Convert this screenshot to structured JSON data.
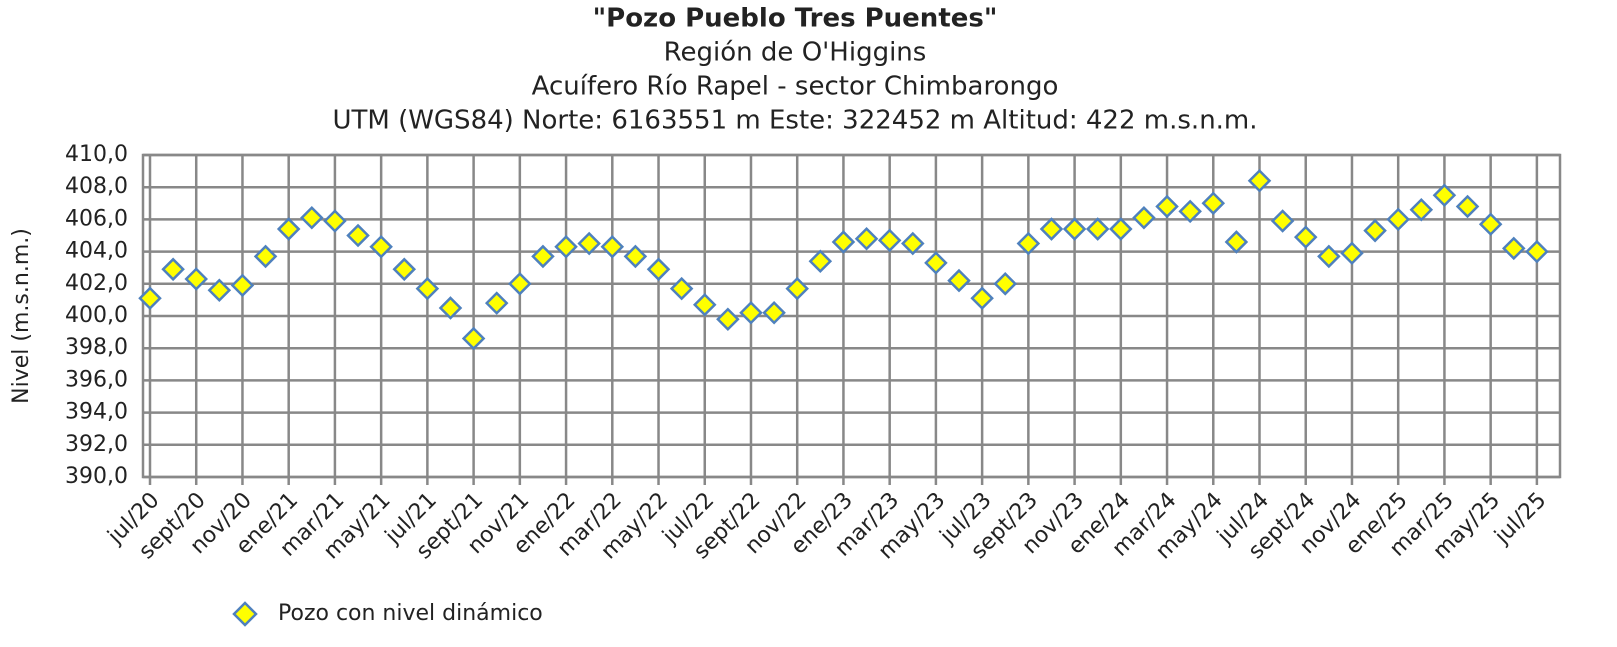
{
  "chart_data": {
    "type": "scatter",
    "title": "\"Pozo Pueblo Tres Puentes\"",
    "subtitles": [
      "Región de O'Higgins",
      "Acuífero Río Rapel - sector Chimbarongo",
      "UTM (WGS84) Norte: 6163551 m Este: 322452 m   Altitud: 422 m.s.n.m."
    ],
    "y_label": "Nivel (m.s.n.m.)",
    "x": [
      "2020-07",
      "2020-08",
      "2020-09",
      "2020-10",
      "2020-11",
      "2020-12",
      "2021-01",
      "2021-02",
      "2021-03",
      "2021-04",
      "2021-05",
      "2021-06",
      "2021-07",
      "2021-08",
      "2021-09",
      "2021-10",
      "2021-11",
      "2021-12",
      "2022-01",
      "2022-02",
      "2022-03",
      "2022-04",
      "2022-05",
      "2022-06",
      "2022-07",
      "2022-08",
      "2022-09",
      "2022-10",
      "2022-11",
      "2022-12",
      "2023-01",
      "2023-02",
      "2023-03",
      "2023-04",
      "2023-05",
      "2023-06",
      "2023-07",
      "2023-08",
      "2023-09",
      "2023-10",
      "2023-11",
      "2023-12",
      "2024-01",
      "2024-02",
      "2024-03",
      "2024-04",
      "2024-05",
      "2024-06",
      "2024-07",
      "2024-08",
      "2024-09",
      "2024-10",
      "2024-11",
      "2024-12",
      "2025-01",
      "2025-02",
      "2025-03",
      "2025-04",
      "2025-05",
      "2025-06",
      "2025-07"
    ],
    "series": [
      {
        "name": "Pozo con nivel dinámico",
        "color": "#ffff00",
        "edge": "#4f81bd",
        "values": [
          401.1,
          402.9,
          402.3,
          401.6,
          401.9,
          403.7,
          405.4,
          406.1,
          405.9,
          405.0,
          404.3,
          402.9,
          401.7,
          400.5,
          398.6,
          400.8,
          402.0,
          403.7,
          404.3,
          404.5,
          404.3,
          403.7,
          402.9,
          401.7,
          400.7,
          399.8,
          400.2,
          400.2,
          401.7,
          403.4,
          404.6,
          404.8,
          404.7,
          404.5,
          403.3,
          402.2,
          401.1,
          402.0,
          404.5,
          405.4,
          405.4,
          405.4,
          405.4,
          406.1,
          406.8,
          406.5,
          407.0,
          404.6,
          408.4,
          405.9,
          404.9,
          403.7,
          403.9,
          405.3,
          406.0,
          406.6,
          407.5,
          406.8,
          405.7,
          404.2,
          404.0
        ]
      }
    ],
    "xlim": [
      "2020-07",
      "2025-08"
    ],
    "xticks": [
      {
        "value": "2020-07",
        "label": "jul/20"
      },
      {
        "value": "2020-09",
        "label": "sept/20"
      },
      {
        "value": "2020-11",
        "label": "nov/20"
      },
      {
        "value": "2021-01",
        "label": "ene/21"
      },
      {
        "value": "2021-03",
        "label": "mar/21"
      },
      {
        "value": "2021-05",
        "label": "may/21"
      },
      {
        "value": "2021-07",
        "label": "jul/21"
      },
      {
        "value": "2021-09",
        "label": "sept/21"
      },
      {
        "value": "2021-11",
        "label": "nov/21"
      },
      {
        "value": "2022-01",
        "label": "ene/22"
      },
      {
        "value": "2022-03",
        "label": "mar/22"
      },
      {
        "value": "2022-05",
        "label": "may/22"
      },
      {
        "value": "2022-07",
        "label": "jul/22"
      },
      {
        "value": "2022-09",
        "label": "sept/22"
      },
      {
        "value": "2022-11",
        "label": "nov/22"
      },
      {
        "value": "2023-01",
        "label": "ene/23"
      },
      {
        "value": "2023-03",
        "label": "mar/23"
      },
      {
        "value": "2023-05",
        "label": "may/23"
      },
      {
        "value": "2023-07",
        "label": "jul/23"
      },
      {
        "value": "2023-09",
        "label": "sept/23"
      },
      {
        "value": "2023-11",
        "label": "nov/23"
      },
      {
        "value": "2024-01",
        "label": "ene/24"
      },
      {
        "value": "2024-03",
        "label": "mar/24"
      },
      {
        "value": "2024-05",
        "label": "may/24"
      },
      {
        "value": "2024-07",
        "label": "jul/24"
      },
      {
        "value": "2024-09",
        "label": "sept/24"
      },
      {
        "value": "2024-11",
        "label": "nov/24"
      },
      {
        "value": "2025-01",
        "label": "ene/25"
      },
      {
        "value": "2025-03",
        "label": "mar/25"
      },
      {
        "value": "2025-05",
        "label": "may/25"
      },
      {
        "value": "2025-07",
        "label": "jul/25"
      }
    ],
    "ylim": [
      390,
      410
    ],
    "yticks": [
      {
        "value": 390,
        "label": "390,0"
      },
      {
        "value": 392,
        "label": "392,0"
      },
      {
        "value": 394,
        "label": "394,0"
      },
      {
        "value": 396,
        "label": "396,0"
      },
      {
        "value": 398,
        "label": "398,0"
      },
      {
        "value": 400,
        "label": "400,0"
      },
      {
        "value": 402,
        "label": "402,0"
      },
      {
        "value": 404,
        "label": "404,0"
      },
      {
        "value": 406,
        "label": "406,0"
      },
      {
        "value": 408,
        "label": "408,0"
      },
      {
        "value": 410,
        "label": "410,0"
      }
    ],
    "grid": true,
    "legend": "bottom-left"
  }
}
